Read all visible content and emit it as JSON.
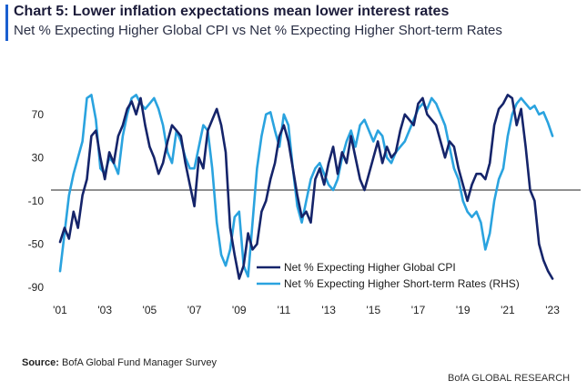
{
  "title": "Chart 5: Lower inflation expectations mean lower interest rates",
  "subtitle": "Net % Expecting Higher Global CPI vs Net % Expecting Higher Short-term Rates",
  "source": {
    "label": "Source:",
    "text": "BofA Global Fund Manager Survey"
  },
  "brand": "BofA GLOBAL RESEARCH",
  "colors": {
    "accent": "#1a5fd0",
    "cpi": "#15246a",
    "rates": "#2aa3df",
    "zero_line": "#222222"
  },
  "chart_data": {
    "type": "line",
    "xlim": [
      2001,
      2023.2
    ],
    "ylim": [
      -90,
      90
    ],
    "y_ticks": [
      70,
      30,
      -10,
      -50,
      -90
    ],
    "y_tick_labels": [
      "70",
      "30",
      "-10",
      "-50",
      "-90"
    ],
    "x_ticks": [
      2001,
      2003,
      2005,
      2007,
      2009,
      2011,
      2013,
      2015,
      2017,
      2019,
      2021,
      2023
    ],
    "x_tick_labels": [
      "'01",
      "'03",
      "'05",
      "'07",
      "'09",
      "'11",
      "'13",
      "'15",
      "'17",
      "'19",
      "'21",
      "'23"
    ],
    "reference_line": 0,
    "legend_position": "bottom-right",
    "series": [
      {
        "name": "Net % Expecting Higher Global CPI",
        "x": [
          2001.0,
          2001.2,
          2001.4,
          2001.6,
          2001.8,
          2002.0,
          2002.2,
          2002.4,
          2002.6,
          2002.8,
          2003.0,
          2003.2,
          2003.4,
          2003.6,
          2003.8,
          2004.0,
          2004.2,
          2004.4,
          2004.6,
          2004.8,
          2005.0,
          2005.2,
          2005.4,
          2005.6,
          2005.8,
          2006.0,
          2006.2,
          2006.4,
          2006.6,
          2006.8,
          2007.0,
          2007.2,
          2007.4,
          2007.6,
          2007.8,
          2008.0,
          2008.2,
          2008.4,
          2008.6,
          2008.8,
          2009.0,
          2009.2,
          2009.4,
          2009.6,
          2009.8,
          2010.0,
          2010.2,
          2010.4,
          2010.6,
          2010.8,
          2011.0,
          2011.2,
          2011.4,
          2011.6,
          2011.8,
          2012.0,
          2012.2,
          2012.4,
          2012.6,
          2012.8,
          2013.0,
          2013.2,
          2013.4,
          2013.6,
          2013.8,
          2014.0,
          2014.2,
          2014.4,
          2014.6,
          2014.8,
          2015.0,
          2015.2,
          2015.4,
          2015.6,
          2015.8,
          2016.0,
          2016.2,
          2016.4,
          2016.6,
          2016.8,
          2017.0,
          2017.2,
          2017.4,
          2017.6,
          2017.8,
          2018.0,
          2018.2,
          2018.4,
          2018.6,
          2018.8,
          2019.0,
          2019.2,
          2019.4,
          2019.6,
          2019.8,
          2020.0,
          2020.2,
          2020.4,
          2020.6,
          2020.8,
          2021.0,
          2021.2,
          2021.4,
          2021.6,
          2021.8,
          2022.0,
          2022.2,
          2022.4,
          2022.6,
          2022.8,
          2023.0
        ],
        "values": [
          -48,
          -35,
          -45,
          -20,
          -35,
          -5,
          10,
          50,
          55,
          30,
          10,
          35,
          25,
          50,
          60,
          75,
          82,
          70,
          85,
          60,
          40,
          30,
          15,
          25,
          45,
          60,
          55,
          50,
          25,
          5,
          -15,
          30,
          20,
          55,
          65,
          75,
          60,
          35,
          -35,
          -60,
          -82,
          -70,
          -40,
          -55,
          -50,
          -20,
          -10,
          10,
          25,
          50,
          60,
          45,
          20,
          -5,
          -25,
          -20,
          -30,
          10,
          20,
          5,
          25,
          40,
          15,
          35,
          25,
          50,
          30,
          10,
          0,
          15,
          30,
          45,
          25,
          40,
          30,
          35,
          55,
          70,
          65,
          60,
          80,
          85,
          70,
          65,
          60,
          45,
          30,
          45,
          40,
          20,
          5,
          -10,
          5,
          15,
          15,
          10,
          25,
          60,
          75,
          80,
          88,
          85,
          60,
          75,
          40,
          0,
          -10,
          -50,
          -65,
          -75,
          -82
        ]
      },
      {
        "name": "Net % Expecting Higher Short-term Rates (RHS)",
        "x": [
          2001.0,
          2001.2,
          2001.4,
          2001.6,
          2001.8,
          2002.0,
          2002.2,
          2002.4,
          2002.6,
          2002.8,
          2003.0,
          2003.2,
          2003.4,
          2003.6,
          2003.8,
          2004.0,
          2004.2,
          2004.4,
          2004.6,
          2004.8,
          2005.0,
          2005.2,
          2005.4,
          2005.6,
          2005.8,
          2006.0,
          2006.2,
          2006.4,
          2006.6,
          2006.8,
          2007.0,
          2007.2,
          2007.4,
          2007.6,
          2007.8,
          2008.0,
          2008.2,
          2008.4,
          2008.6,
          2008.8,
          2009.0,
          2009.2,
          2009.4,
          2009.6,
          2009.8,
          2010.0,
          2010.2,
          2010.4,
          2010.6,
          2010.8,
          2011.0,
          2011.2,
          2011.4,
          2011.6,
          2011.8,
          2012.0,
          2012.2,
          2012.4,
          2012.6,
          2012.8,
          2013.0,
          2013.2,
          2013.4,
          2013.6,
          2013.8,
          2014.0,
          2014.2,
          2014.4,
          2014.6,
          2014.8,
          2015.0,
          2015.2,
          2015.4,
          2015.6,
          2015.8,
          2016.0,
          2016.2,
          2016.4,
          2016.6,
          2016.8,
          2017.0,
          2017.2,
          2017.4,
          2017.6,
          2017.8,
          2018.0,
          2018.2,
          2018.4,
          2018.6,
          2018.8,
          2019.0,
          2019.2,
          2019.4,
          2019.6,
          2019.8,
          2020.0,
          2020.2,
          2020.4,
          2020.6,
          2020.8,
          2021.0,
          2021.2,
          2021.4,
          2021.6,
          2021.8,
          2022.0,
          2022.2,
          2022.4,
          2022.6,
          2022.8,
          2023.0
        ],
        "values": [
          -75,
          -40,
          -5,
          15,
          30,
          45,
          85,
          88,
          65,
          20,
          15,
          30,
          25,
          15,
          50,
          70,
          85,
          88,
          80,
          75,
          80,
          85,
          75,
          60,
          35,
          25,
          55,
          45,
          30,
          20,
          20,
          40,
          60,
          55,
          20,
          -30,
          -60,
          -70,
          -55,
          -25,
          -20,
          -70,
          -80,
          -30,
          20,
          50,
          70,
          72,
          55,
          40,
          70,
          60,
          20,
          -15,
          -30,
          -10,
          10,
          20,
          25,
          15,
          5,
          0,
          10,
          30,
          45,
          55,
          40,
          60,
          65,
          55,
          45,
          55,
          50,
          30,
          25,
          35,
          40,
          45,
          55,
          65,
          75,
          80,
          75,
          85,
          80,
          70,
          60,
          40,
          20,
          10,
          -10,
          -20,
          -25,
          -20,
          -30,
          -55,
          -40,
          -10,
          10,
          20,
          50,
          70,
          80,
          85,
          80,
          75,
          78,
          70,
          72,
          62,
          50
        ]
      }
    ]
  }
}
